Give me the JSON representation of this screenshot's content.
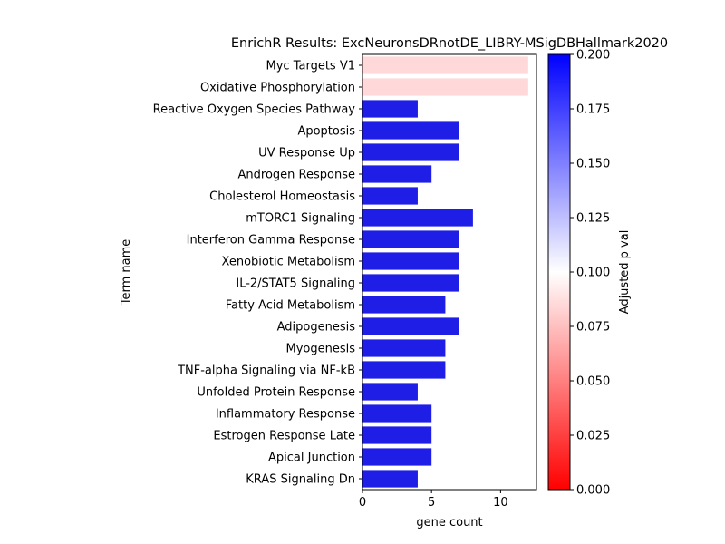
{
  "chart_data": {
    "type": "bar",
    "orientation": "horizontal",
    "title": "EnrichR Results: ExcNeuronsDRnotDE_LIBRY-MSigDBHallmark2020",
    "xlabel": "gene count",
    "ylabel": "Term name",
    "xlim": [
      0,
      12.6
    ],
    "xticks": [
      0,
      5,
      10
    ],
    "grid": false,
    "categories": [
      "Myc Targets V1",
      "Oxidative Phosphorylation",
      "Reactive Oxygen Species Pathway",
      "Apoptosis",
      "UV Response Up",
      "Androgen Response",
      "Cholesterol Homeostasis",
      "mTORC1 Signaling",
      "Interferon Gamma Response",
      "Xenobiotic Metabolism",
      "IL-2/STAT5 Signaling",
      "Fatty Acid Metabolism",
      "Adipogenesis",
      "Myogenesis",
      "TNF-alpha Signaling via NF-kB",
      "Unfolded Protein Response",
      "Inflammatory Response",
      "Estrogen Response Late",
      "Apical Junction",
      "KRAS Signaling Dn"
    ],
    "values": [
      12,
      12,
      4,
      7,
      7,
      5,
      4,
      8,
      7,
      7,
      7,
      6,
      7,
      6,
      6,
      4,
      5,
      5,
      5,
      4
    ],
    "adjusted_p": [
      0.085,
      0.085,
      0.2,
      0.2,
      0.2,
      0.2,
      0.2,
      0.2,
      0.2,
      0.2,
      0.2,
      0.2,
      0.2,
      0.2,
      0.2,
      0.2,
      0.2,
      0.2,
      0.2,
      0.2
    ],
    "colorbar": {
      "label": "Adjusted p val",
      "range": [
        0.0,
        0.2
      ],
      "ticks": [
        "0.000",
        "0.025",
        "0.050",
        "0.075",
        "0.100",
        "0.125",
        "0.150",
        "0.175",
        "0.200"
      ],
      "colormap": [
        "#ff0000",
        "#ffffff",
        "#0000ff"
      ]
    }
  }
}
